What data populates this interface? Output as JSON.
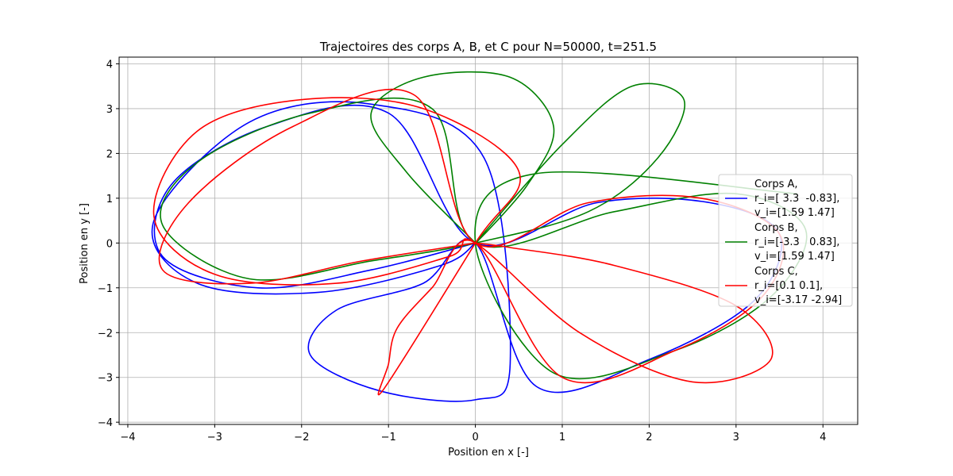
{
  "chart_data": {
    "type": "line",
    "title": "Trajectoires des corps A, B, et C pour N=50000, t=251.5",
    "xlabel": "Position en x [-]",
    "ylabel": "Position en y [-]",
    "xlim": [
      -4.1,
      4.4
    ],
    "ylim": [
      -4.05,
      4.15
    ],
    "xticks": [
      -4,
      -3,
      -2,
      -1,
      0,
      1,
      2,
      3,
      4
    ],
    "yticks": [
      -4,
      -3,
      -2,
      -1,
      0,
      1,
      2,
      3,
      4
    ],
    "xtick_labels": [
      "−4",
      "−3",
      "−2",
      "−1",
      "0",
      "1",
      "2",
      "3",
      "4"
    ],
    "ytick_labels": [
      "−4",
      "−3",
      "−2",
      "−1",
      "0",
      "1",
      "2",
      "3",
      "4"
    ],
    "grid": true,
    "legend_position": "right",
    "series": [
      {
        "name": "Corps A",
        "legend_lines": [
          "Corps A,",
          "r_i=[ 3.3  -0.83],",
          "v_i=[1.59 1.47]"
        ],
        "color": "#0000ff",
        "x": [
          0,
          -1.2,
          -2.5,
          -3.6,
          -3.5,
          -2.4,
          -1.0,
          0,
          1.4,
          2.7,
          3.5,
          3.2,
          2.0,
          0.7,
          0,
          -0.6,
          -1.6,
          -1.9,
          -1.1,
          0,
          0.4,
          0.1,
          -1.2,
          -2.6,
          -3.7,
          -3.2,
          -1.8,
          -0.4,
          0
        ],
        "y": [
          0,
          -0.6,
          -1.0,
          -0.3,
          1.3,
          2.6,
          2.9,
          0,
          0.9,
          0.9,
          0.2,
          -1.3,
          -2.6,
          -3.2,
          0,
          -0.9,
          -1.5,
          -2.5,
          -3.3,
          -3.5,
          -2.7,
          1.9,
          3.1,
          2.7,
          0.5,
          -0.9,
          -1.1,
          -0.5,
          0
        ]
      },
      {
        "name": "Corps B",
        "legend_lines": [
          "Corps B,",
          "r_i=[-3.3   0.83],",
          "v_i=[1.59 1.47]"
        ],
        "color": "#008000",
        "x": [
          0,
          -0.8,
          -1.2,
          -0.6,
          0.4,
          0.9,
          0.6,
          0,
          1.0,
          1.8,
          2.4,
          2.1,
          1.3,
          0,
          -1.2,
          -2.6,
          -3.6,
          -3.2,
          -1.9,
          -0.5,
          0,
          1.6,
          3.0,
          3.8,
          3.4,
          2.3,
          0.9,
          0,
          0.7,
          3.7
        ],
        "y": [
          0,
          1.6,
          2.9,
          3.7,
          3.7,
          2.6,
          1.3,
          0,
          2.2,
          3.5,
          3.2,
          1.9,
          0.7,
          0,
          -0.4,
          -0.8,
          0.4,
          1.8,
          2.9,
          3.0,
          0,
          0.7,
          1.1,
          0.3,
          -1.2,
          -2.4,
          -2.9,
          0,
          1.55,
          1.1
        ]
      },
      {
        "name": "Corps C",
        "legend_lines": [
          "Corps C,",
          "r_i=[0.1 0.1],",
          "v_i=[-3.17 -2.94]"
        ],
        "color": "#ff0000",
        "x": [
          0,
          -1.3,
          -2.6,
          -3.6,
          -3.3,
          -2.1,
          -0.7,
          0,
          1.3,
          2.6,
          3.5,
          3.3,
          2.3,
          1.0,
          0,
          -0.5,
          -0.9,
          -1.0,
          -1.05,
          0,
          0.5,
          -0.6,
          -2.0,
          -3.2,
          -3.7,
          -3.0,
          -1.6,
          -0.3,
          0,
          1.2,
          2.5,
          3.4,
          3.0,
          1.6,
          0.4,
          0
        ],
        "y": [
          0,
          -0.4,
          -0.9,
          -0.6,
          0.9,
          2.6,
          3.3,
          0,
          0.9,
          1.0,
          0.2,
          -1.2,
          -2.4,
          -3.0,
          0,
          -1.0,
          -1.9,
          -2.7,
          -3.25,
          0,
          1.6,
          3.0,
          3.2,
          2.5,
          0.6,
          -0.7,
          -0.9,
          -0.3,
          0,
          -2.0,
          -3.1,
          -2.6,
          -1.4,
          -0.5,
          -0.1,
          0
        ]
      }
    ]
  }
}
